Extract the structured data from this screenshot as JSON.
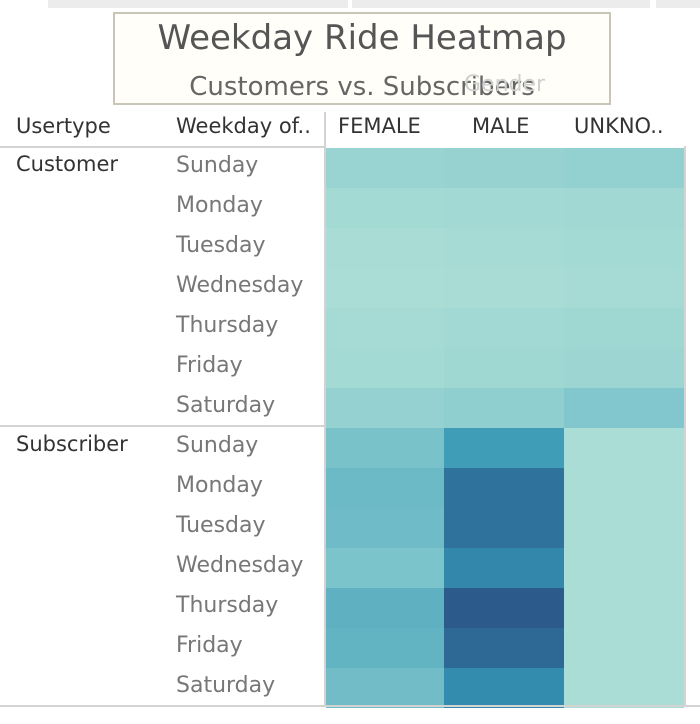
{
  "chart_data": {
    "type": "heatmap",
    "title": "Weekday Ride Heatmap",
    "subtitle": "Customers vs. Subscribers",
    "ghost_label": "Gender",
    "row_headers": [
      "Usertype",
      "Weekday of.."
    ],
    "columns": [
      "FEMALE",
      "MALE",
      "UNKNO.."
    ],
    "groups": [
      {
        "name": "Customer",
        "rows": [
          {
            "day": "Sunday",
            "values": [
              18,
              20,
              22
            ]
          },
          {
            "day": "Monday",
            "values": [
              12,
              13,
              14
            ]
          },
          {
            "day": "Tuesday",
            "values": [
              10,
              11,
              12
            ]
          },
          {
            "day": "Wednesday",
            "values": [
              9,
              10,
              11
            ]
          },
          {
            "day": "Thursday",
            "values": [
              11,
              13,
              15
            ]
          },
          {
            "day": "Friday",
            "values": [
              12,
              15,
              17
            ]
          },
          {
            "day": "Saturday",
            "values": [
              21,
              24,
              32
            ]
          }
        ]
      },
      {
        "name": "Subscriber",
        "rows": [
          {
            "day": "Sunday",
            "values": [
              36,
              62,
              9
            ]
          },
          {
            "day": "Monday",
            "values": [
              42,
              86,
              9
            ]
          },
          {
            "day": "Tuesday",
            "values": [
              41,
              86,
              9
            ]
          },
          {
            "day": "Wednesday",
            "values": [
              35,
              75,
              9
            ]
          },
          {
            "day": "Thursday",
            "values": [
              48,
              100,
              9
            ]
          },
          {
            "day": "Friday",
            "values": [
              46,
              92,
              9
            ]
          },
          {
            "day": "Saturday",
            "values": [
              40,
              72,
              9
            ]
          }
        ]
      }
    ],
    "color_scale": [
      "#b9e5d9",
      "#80c6cc",
      "#3496b5",
      "#2c5a8a"
    ],
    "value_range": [
      0,
      100
    ]
  }
}
